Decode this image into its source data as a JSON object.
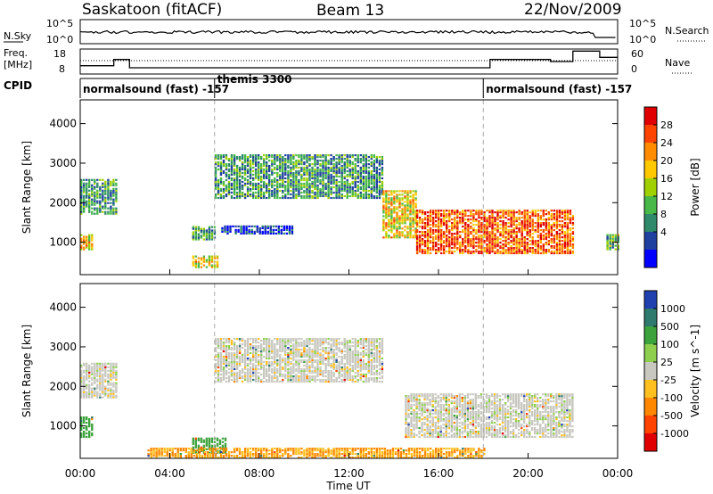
{
  "header": {
    "station": "Saskatoon (fitACF)",
    "beam": "Beam 13",
    "date": "22/Nov/2009"
  },
  "noise_panel": {
    "left_label": "N.Sky",
    "right_label": "N.Search",
    "left_ticks": [
      "10^5",
      "10^0"
    ],
    "right_ticks": [
      "10^5",
      "10^0"
    ]
  },
  "freq_panel": {
    "left_label_1": "Freq.",
    "left_label_2": "[MHz]",
    "left_ticks": [
      "18",
      "8"
    ],
    "right_label": "Nave",
    "right_ticks": [
      "60",
      "0"
    ]
  },
  "cpid": {
    "label": "CPID",
    "segments": [
      {
        "start_hour": 0,
        "text": "normalsound (fast) -157"
      },
      {
        "start_hour": 6,
        "text": "themis 3300"
      },
      {
        "start_hour": 18,
        "text": "normalsound (fast) -157"
      }
    ]
  },
  "power_panel": {
    "ylabel": "Slant Range [km]",
    "colorbar_label": "Power [dB]",
    "colorbar_ticks": [
      "28",
      "24",
      "20",
      "16",
      "12",
      "8",
      "4"
    ],
    "colors": [
      "#e00000",
      "#ff4400",
      "#ff8c00",
      "#ffc800",
      "#a0d000",
      "#48b848",
      "#2e8a6a",
      "#2040a0",
      "#0000ff"
    ]
  },
  "velocity_panel": {
    "ylabel": "Slant Range [km]",
    "colorbar_label": "Velocity [m s^-1]",
    "colorbar_ticks": [
      "1000",
      "500",
      "100",
      "25",
      "-25",
      "-100",
      "-500",
      "-1000"
    ],
    "colors": [
      "#2040b0",
      "#2e7a6e",
      "#3ca23c",
      "#8ed04e",
      "#c8c8c0",
      "#ffc020",
      "#ff8800",
      "#ff4400",
      "#e00000"
    ]
  },
  "y_ticks": [
    "4000",
    "3000",
    "2000",
    "1000"
  ],
  "x_ticks": [
    "00:00",
    "04:00",
    "08:00",
    "12:00",
    "16:00",
    "20:00",
    "00:00"
  ],
  "xlabel": "Time UT",
  "chart_data": {
    "type": "heatmap",
    "title": "Saskatoon (fitACF) Beam 13 22/Nov/2009",
    "xlabel": "Time UT",
    "ylabel": "Slant Range [km]",
    "xlim_hours": [
      0,
      24
    ],
    "ylim_km": [
      180,
      4600
    ],
    "yticks_km": [
      1000,
      2000,
      3000,
      4000
    ],
    "power_range_db": [
      0,
      30
    ],
    "velocity_range": [
      -1000,
      1000
    ],
    "power_echo_regions": [
      {
        "t0": 0.0,
        "t1": 0.6,
        "r0": 800,
        "r1": 1200,
        "power_db": 20
      },
      {
        "t0": 0.0,
        "t1": 1.6,
        "r0": 1700,
        "r1": 2600,
        "power_db": 12
      },
      {
        "t0": 5.0,
        "t1": 6.0,
        "r0": 1050,
        "r1": 1400,
        "power_db": 12
      },
      {
        "t0": 5.0,
        "t1": 6.2,
        "r0": 350,
        "r1": 650,
        "power_db": 20
      },
      {
        "t0": 6.3,
        "t1": 9.5,
        "r0": 1200,
        "r1": 1400,
        "power_db": 6
      },
      {
        "t0": 6.0,
        "t1": 13.5,
        "r0": 2100,
        "r1": 3200,
        "power_db": 12
      },
      {
        "t0": 13.5,
        "t1": 15.0,
        "r0": 1100,
        "r1": 2300,
        "power_db": 20
      },
      {
        "t0": 15.0,
        "t1": 22.0,
        "r0": 700,
        "r1": 1800,
        "power_db": 26
      },
      {
        "t0": 23.5,
        "t1": 24.0,
        "r0": 800,
        "r1": 1200,
        "power_db": 14
      }
    ],
    "velocity_echo_regions": [
      {
        "t0": 0.0,
        "t1": 1.6,
        "r0": 1700,
        "r1": 2600,
        "velocity": 0
      },
      {
        "t0": 0.0,
        "t1": 0.6,
        "r0": 700,
        "r1": 1200,
        "velocity": 100
      },
      {
        "t0": 5.0,
        "t1": 6.5,
        "r0": 300,
        "r1": 700,
        "velocity": 150
      },
      {
        "t0": 6.0,
        "t1": 13.5,
        "r0": 2100,
        "r1": 3200,
        "velocity": 0
      },
      {
        "t0": 14.5,
        "t1": 22.0,
        "r0": 700,
        "r1": 1800,
        "velocity": 0
      },
      {
        "t0": 3.0,
        "t1": 18.0,
        "r0": 180,
        "r1": 450,
        "velocity": -100
      }
    ],
    "cpid_changes_hours": [
      6,
      18
    ]
  }
}
